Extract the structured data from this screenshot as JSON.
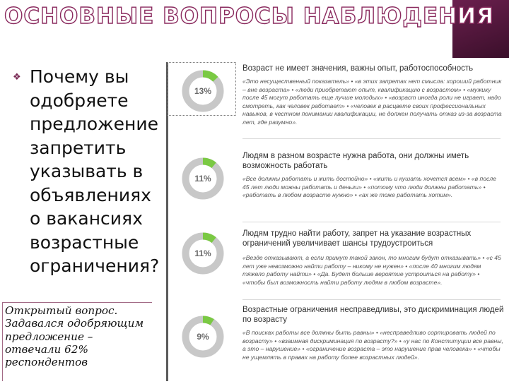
{
  "slide": {
    "title": "ОСНОВНЫЕ ВОПРОСЫ НАБЛЮДЕНИЯ",
    "question": "Почему вы одобряете предложение запретить указывать в объявлениях о вакансиях возрастные ограничения?",
    "note": "Открытый вопрос. Задавался одобряющим предложение – отвечали 62% респондентов"
  },
  "colors": {
    "accent": "#8a2a5e",
    "donut_green": "#7ac943",
    "donut_gray": "#c8c8c8"
  },
  "items": [
    {
      "percent_value": 13,
      "percent_label": "13%",
      "heading": "Возраст не имеет значения, важны опыт, работоспособность",
      "quotes": "«Это несущественный показатель» • «в этих запретах нет смысла: хороший работник – вне возраста» • «люди приобретают опыт, квалификацию с возрастом» • «мужику после 45 могут работать еще лучше молодых» • «возраст иногда роли не играет, надо смотреть, как человек работает» • «человек в расцвете своих профессиональных навыков, в честном понимании квалификации, не должен получать отказ из-за возраста лет, где разумно»."
    },
    {
      "percent_value": 11,
      "percent_label": "11%",
      "heading": "Людям в разном возрасте нужна работа, они должны иметь возможность работать",
      "quotes": "«Все должны работать и жить достойно» • «жить и кушать хочется всем» • «в после 45 лет люди можны работать и деньги» • «потому что люди должны работать» • «работать в любом возрасте нужно» • «ах же тоже работать хотим»."
    },
    {
      "percent_value": 11,
      "percent_label": "11%",
      "heading": "Людям трудно найти работу, запрет на указание возрастных ограничений увеличивает шансы трудоустроиться",
      "quotes": "«Везде отказывают, а если примут такой закон, то многим будут отказывать» • «с 45 лет уже невозможно найти работу – никому не нужен» • «после 40 многим людям тяжело работу найти» • «Да. Будет больше вероятие устроиться на работу» • «чтобы был возможность найти работу людям в любом возрасте»."
    },
    {
      "percent_value": 9,
      "percent_label": "9%",
      "heading": "Возрастные ограничения несправедливы, это дискриминация людей по возрасту",
      "quotes": "«В поисках работы все должны быть равны» • «несправедливо сортировать людей по возрасту» • «взаимная дискриминация по возрасту?» • «у нас по Конституции все равны, а это – нарушение» • «ограничение возраста – это нарушение прав человека» • «чтобы не ущемлять в правах на работу более возрастных людей»."
    }
  ]
}
